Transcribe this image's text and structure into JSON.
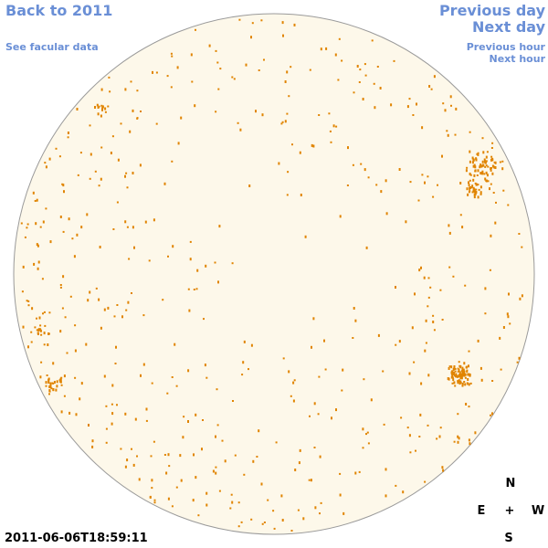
{
  "nav": {
    "back_label": "Back to 2011",
    "facular_label": "See facular data",
    "prev_day_label": "Previous day",
    "next_day_label": "Next day",
    "prev_hour_label": "Previous hour",
    "next_hour_label": "Next hour"
  },
  "timestamp": "2011-06-06T18:59:11",
  "compass": {
    "north": "N",
    "east": "E",
    "center": "+",
    "west": "W",
    "south": "S"
  },
  "colors": {
    "disk_fill": "#fdf8ea",
    "disk_outline": "#9a9a9a",
    "spot": "#e08400",
    "link": "#6a8fd6"
  }
}
